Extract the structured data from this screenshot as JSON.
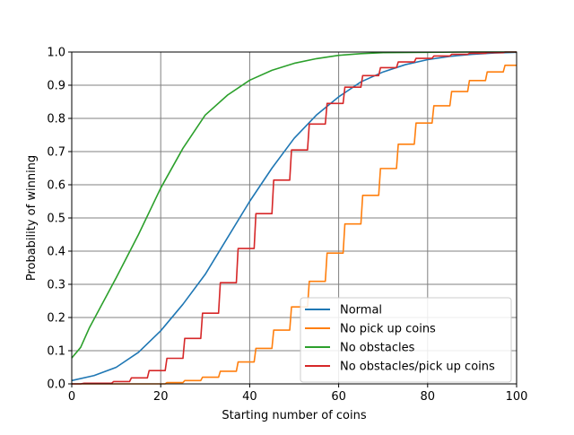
{
  "chart_data": {
    "type": "line",
    "title": "",
    "xlabel": "Starting number of coins",
    "ylabel": "Probability of winning",
    "xlim": [
      0,
      100
    ],
    "ylim": [
      0,
      1
    ],
    "x_ticks": [
      0,
      20,
      40,
      60,
      80,
      100
    ],
    "x_tick_labels": [
      "0",
      "20",
      "40",
      "60",
      "80",
      "100"
    ],
    "y_ticks": [
      0,
      0.1,
      0.2,
      0.3,
      0.4,
      0.5,
      0.6,
      0.7,
      0.8,
      0.9,
      1.0
    ],
    "y_tick_labels": [
      "0.0",
      "0.1",
      "0.2",
      "0.3",
      "0.4",
      "0.5",
      "0.6",
      "0.7",
      "0.8",
      "0.9",
      "1.0"
    ],
    "grid": true,
    "legend_position": "bottom-right",
    "series": [
      {
        "name": "Normal",
        "color": "#1f77b4",
        "x": [
          0,
          5,
          10,
          15,
          20,
          25,
          30,
          35,
          40,
          45,
          50,
          55,
          60,
          65,
          70,
          75,
          80,
          85,
          90,
          95,
          100
        ],
        "y": [
          0.01,
          0.025,
          0.05,
          0.095,
          0.16,
          0.24,
          0.33,
          0.44,
          0.55,
          0.65,
          0.74,
          0.81,
          0.865,
          0.91,
          0.94,
          0.962,
          0.977,
          0.987,
          0.993,
          0.997,
          0.999
        ]
      },
      {
        "name": "No pick up coins",
        "color": "#ff7f0e",
        "x": [
          0,
          20,
          24,
          28,
          32,
          36,
          40,
          44,
          48,
          52,
          56,
          60,
          64,
          68,
          72,
          76,
          80,
          84,
          88,
          92,
          96,
          100
        ],
        "y": [
          0.0,
          0.0,
          0.004,
          0.01,
          0.02,
          0.038,
          0.066,
          0.107,
          0.162,
          0.232,
          0.309,
          0.394,
          0.482,
          0.568,
          0.649,
          0.722,
          0.786,
          0.838,
          0.881,
          0.914,
          0.94,
          0.96
        ]
      },
      {
        "name": "No obstacles",
        "color": "#2ca02c",
        "x": [
          0,
          2,
          4,
          6,
          8,
          10,
          15,
          20,
          25,
          30,
          35,
          40,
          45,
          50,
          55,
          60,
          65,
          70,
          80,
          90,
          100
        ],
        "y": [
          0.078,
          0.11,
          0.17,
          0.22,
          0.27,
          0.32,
          0.45,
          0.59,
          0.71,
          0.81,
          0.87,
          0.915,
          0.945,
          0.966,
          0.98,
          0.99,
          0.995,
          0.998,
          0.999,
          1.0,
          1.0
        ]
      },
      {
        "name": "No obstacles/pick up coins",
        "color": "#d62728",
        "x": [
          0,
          8,
          12,
          16,
          20,
          24,
          28,
          32,
          36,
          40,
          44,
          48,
          52,
          56,
          60,
          64,
          68,
          72,
          76,
          80,
          84,
          88,
          92,
          96,
          100
        ],
        "y": [
          0.0,
          0.002,
          0.007,
          0.018,
          0.04,
          0.077,
          0.137,
          0.213,
          0.305,
          0.408,
          0.513,
          0.614,
          0.705,
          0.783,
          0.845,
          0.894,
          0.929,
          0.953,
          0.97,
          0.981,
          0.988,
          0.993,
          0.996,
          0.998,
          1.0
        ]
      }
    ]
  }
}
